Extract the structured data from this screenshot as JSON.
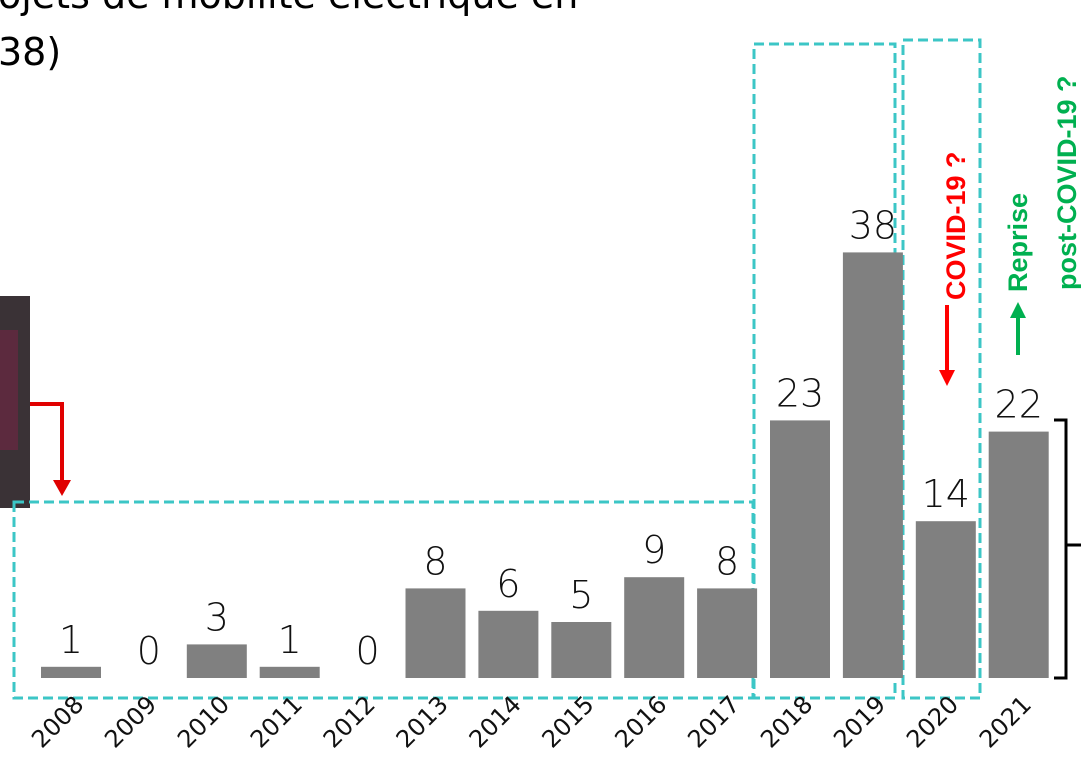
{
  "chart_data": {
    "type": "bar",
    "title": [
      "ojets de mobilité électrique en",
      "38)"
    ],
    "categories": [
      "2008",
      "2009",
      "2010",
      "2011",
      "2012",
      "2013",
      "2014",
      "2015",
      "2016",
      "2017",
      "2018",
      "2019",
      "2020",
      "2021"
    ],
    "values": [
      1,
      0,
      3,
      1,
      0,
      8,
      6,
      5,
      9,
      8,
      23,
      38,
      14,
      22
    ],
    "color": "#808080",
    "annotations": [
      "COVID-19 ?",
      "Reprise",
      "post-COVID-19 ?"
    ]
  }
}
